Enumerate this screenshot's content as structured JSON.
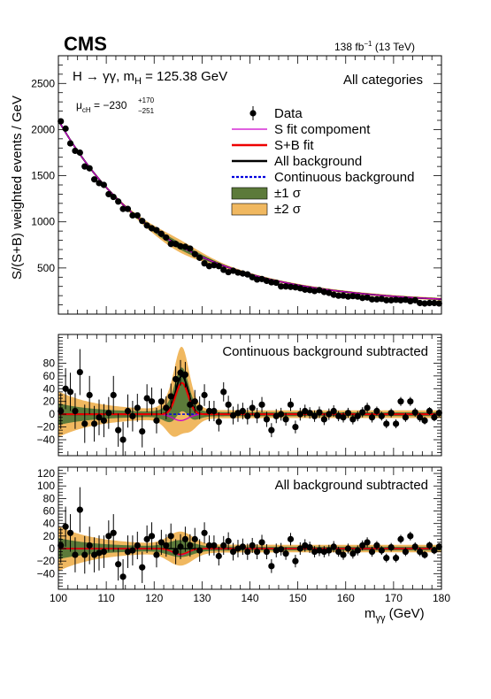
{
  "header": {
    "experiment": "CMS",
    "lumi_prefix": "138 fb",
    "lumi_exp": "−1",
    "lumi_suffix": " (13 TeV)"
  },
  "chart_data": {
    "type": "scatter",
    "x_range": [
      100,
      180
    ],
    "x_ticks": [
      "100",
      "110",
      "120",
      "130",
      "140",
      "150",
      "160",
      "170",
      "180"
    ],
    "xlabel_main": "m",
    "xlabel_sub": "γγ",
    "xlabel_unit": " (GeV)",
    "mH": 125.38,
    "panels": {
      "top": {
        "ylabel": "S/(S+B) weighted events / GeV",
        "ylim": [
          0,
          2800
        ],
        "y_ticks": [
          "500",
          "1000",
          "1500",
          "2000",
          "2500"
        ],
        "text_left": "H → γγ, m",
        "text_left_sub": "H",
        "text_left_rest": " = 125.38 GeV",
        "text_right": "All categories",
        "mu_label": "μ",
        "mu_sub": "cH",
        "mu_value": " = −230",
        "mu_up": "+170",
        "mu_down": "−251"
      },
      "middle": {
        "ylim": [
          -65,
          125
        ],
        "y_ticks": [
          "−40",
          "−20",
          "0",
          "20",
          "40",
          "60",
          "80"
        ],
        "title": "Continuous background subtracted"
      },
      "bottom": {
        "ylim": [
          -65,
          130
        ],
        "y_ticks": [
          "−40",
          "−20",
          "0",
          "20",
          "40",
          "60",
          "80",
          "100",
          "120"
        ],
        "title": "All background subtracted"
      }
    },
    "legend": [
      {
        "label": "Data",
        "type": "marker"
      },
      {
        "label": "S fit compoment",
        "type": "line",
        "color": "#cc00cc"
      },
      {
        "label": "S+B fit",
        "type": "line",
        "color": "#ee0000"
      },
      {
        "label": "All background",
        "type": "line",
        "color": "#000000"
      },
      {
        "label": "Continuous background",
        "type": "dashed",
        "color": "#0000dd"
      },
      {
        "label": "±1 σ",
        "type": "box",
        "color": "#5c7a3a"
      },
      {
        "label": "±2 σ",
        "type": "box",
        "color": "#f0b860"
      }
    ],
    "colors": {
      "signal": "#cc00cc",
      "sb_fit": "#ee0000",
      "all_background": "#000000",
      "continuous_background": "#0000dd",
      "band_1sigma": "#5c7a3a",
      "band_2sigma": "#f0b860"
    },
    "x": [
      100.5,
      101.5,
      102.5,
      103.5,
      104.5,
      105.5,
      106.5,
      107.5,
      108.5,
      109.5,
      110.5,
      111.5,
      112.5,
      113.5,
      114.5,
      115.5,
      116.5,
      117.5,
      118.5,
      119.5,
      120.5,
      121.5,
      122.5,
      123.5,
      124.5,
      125.5,
      126.5,
      127.5,
      128.5,
      129.5,
      130.5,
      131.5,
      132.5,
      133.5,
      134.5,
      135.5,
      136.5,
      137.5,
      138.5,
      139.5,
      140.5,
      141.5,
      142.5,
      143.5,
      144.5,
      145.5,
      146.5,
      147.5,
      148.5,
      149.5,
      150.5,
      151.5,
      152.5,
      153.5,
      154.5,
      155.5,
      156.5,
      157.5,
      158.5,
      159.5,
      160.5,
      161.5,
      162.5,
      163.5,
      164.5,
      165.5,
      166.5,
      167.5,
      168.5,
      169.5,
      170.5,
      171.5,
      172.5,
      173.5,
      174.5,
      175.5,
      176.5,
      177.5,
      178.5,
      179.5
    ],
    "top_values": [
      2090,
      2010,
      1850,
      1770,
      1750,
      1600,
      1580,
      1460,
      1420,
      1400,
      1300,
      1270,
      1220,
      1140,
      1140,
      1070,
      1070,
      1010,
      960,
      930,
      910,
      870,
      830,
      760,
      760,
      735,
      730,
      710,
      650,
      610,
      550,
      520,
      530,
      520,
      480,
      455,
      470,
      450,
      440,
      430,
      400,
      375,
      380,
      360,
      345,
      340,
      300,
      300,
      295,
      290,
      280,
      265,
      260,
      250,
      260,
      240,
      230,
      210,
      200,
      200,
      190,
      195,
      190,
      175,
      180,
      160,
      160,
      165,
      150,
      150,
      155,
      150,
      155,
      140,
      150,
      120,
      115,
      120,
      120,
      115
    ],
    "middle_values": [
      5,
      40,
      35,
      5,
      66,
      -15,
      30,
      -15,
      -5,
      -10,
      2,
      30,
      -25,
      -40,
      5,
      -3,
      10,
      -27,
      25,
      20,
      -10,
      20,
      10,
      28,
      55,
      65,
      62,
      15,
      20,
      10,
      30,
      5,
      5,
      -12,
      35,
      15,
      -2,
      2,
      5,
      -3,
      10,
      -2,
      15,
      -8,
      -25,
      -3,
      0,
      -8,
      15,
      -20,
      0,
      5,
      2,
      -3,
      3,
      -8,
      0,
      5,
      -3,
      -5,
      2,
      -8,
      -3,
      3,
      10,
      -5,
      5,
      -3,
      -15,
      2,
      -15,
      20,
      -5,
      20,
      3,
      -5,
      -10,
      5,
      -5,
      2
    ],
    "middle_errors": [
      28,
      32,
      30,
      28,
      36,
      30,
      30,
      28,
      28,
      26,
      25,
      30,
      26,
      28,
      26,
      24,
      22,
      25,
      22,
      22,
      20,
      20,
      18,
      20,
      20,
      20,
      20,
      18,
      18,
      18,
      17,
      16,
      16,
      15,
      15,
      14,
      14,
      14,
      13,
      13,
      12,
      12,
      12,
      12,
      11,
      11,
      10,
      10,
      10,
      10,
      10,
      10,
      9,
      9,
      9,
      9,
      9,
      9,
      8,
      8,
      8,
      8,
      8,
      8,
      8,
      8,
      7,
      7,
      7,
      7,
      7,
      7,
      7,
      7,
      7,
      7,
      6,
      6,
      6,
      6
    ],
    "bottom_values": [
      5,
      35,
      25,
      -10,
      62,
      -10,
      5,
      -10,
      -7,
      -5,
      20,
      25,
      -25,
      -45,
      -5,
      -3,
      5,
      -30,
      15,
      20,
      -10,
      10,
      5,
      20,
      -5,
      3,
      15,
      5,
      15,
      -3,
      25,
      5,
      5,
      -12,
      5,
      12,
      -5,
      0,
      3,
      -5,
      5,
      -5,
      10,
      -5,
      -28,
      -3,
      -1,
      -8,
      15,
      -20,
      0,
      5,
      2,
      -5,
      -3,
      -5,
      -3,
      3,
      -5,
      -10,
      0,
      -8,
      -3,
      5,
      10,
      -5,
      5,
      -3,
      -15,
      2,
      -15,
      15,
      -5,
      20,
      3,
      -5,
      -10,
      5,
      -3,
      3
    ]
  }
}
